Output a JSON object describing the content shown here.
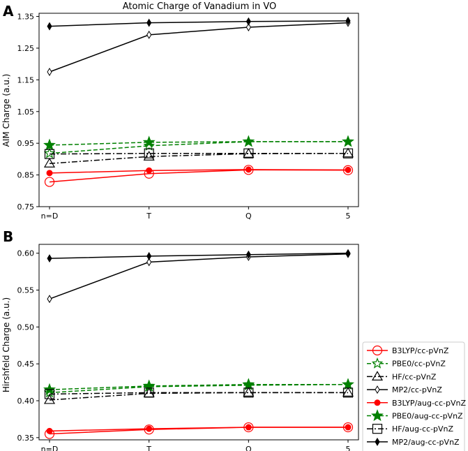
{
  "chart_data": [
    {
      "panel": "A",
      "type": "line",
      "title": "Atomic Charge of Vanadium in VO",
      "xlabel": "",
      "ylabel": "AIM Charge (a.u.)",
      "categories": [
        "n=D",
        "T",
        "Q",
        "5"
      ],
      "ylim": [
        0.75,
        1.36
      ],
      "yticks": [
        "0.75",
        "0.85",
        "0.95",
        "1.05",
        "1.15",
        "1.25",
        "1.35"
      ],
      "series": [
        {
          "name": "B3LYP/cc-pVnZ",
          "values": [
            0.828,
            0.854,
            0.866,
            0.865
          ]
        },
        {
          "name": "PBE0/cc-pVnZ",
          "values": [
            0.918,
            0.942,
            0.955,
            0.955
          ]
        },
        {
          "name": "HF/cc-pVnZ",
          "values": [
            0.886,
            0.908,
            0.917,
            0.918
          ]
        },
        {
          "name": "MP2/cc-pVnZ",
          "values": [
            1.175,
            1.292,
            1.316,
            1.33
          ]
        },
        {
          "name": "B3LYP/aug-cc-pVnZ",
          "values": [
            0.856,
            0.864,
            0.867,
            0.866
          ]
        },
        {
          "name": "PBE0/aug-cc-pVnZ",
          "values": [
            0.944,
            0.953,
            0.955,
            0.955
          ]
        },
        {
          "name": "HF/aug-cc-pVnZ",
          "values": [
            0.916,
            0.918,
            0.918,
            0.918
          ]
        },
        {
          "name": "MP2/aug-cc-pVnZ",
          "values": [
            1.319,
            1.33,
            1.334,
            1.336
          ]
        }
      ]
    },
    {
      "panel": "B",
      "type": "line",
      "title": "",
      "xlabel": "",
      "ylabel": "Hirshfeld Charge (a.u.)",
      "categories": [
        "n=D",
        "T",
        "Q",
        "5"
      ],
      "ylim": [
        0.347,
        0.612
      ],
      "yticks": [
        "0.35",
        "0.40",
        "0.45",
        "0.50",
        "0.55",
        "0.60"
      ],
      "series": [
        {
          "name": "B3LYP/cc-pVnZ",
          "values": [
            0.355,
            0.361,
            0.364,
            0.364
          ]
        },
        {
          "name": "PBE0/cc-pVnZ",
          "values": [
            0.411,
            0.419,
            0.421,
            0.422
          ]
        },
        {
          "name": "HF/cc-pVnZ",
          "values": [
            0.401,
            0.41,
            0.411,
            0.411
          ]
        },
        {
          "name": "MP2/cc-pVnZ",
          "values": [
            0.538,
            0.588,
            0.595,
            0.599
          ]
        },
        {
          "name": "B3LYP/aug-cc-pVnZ",
          "values": [
            0.359,
            0.362,
            0.364,
            0.364
          ]
        },
        {
          "name": "PBE0/aug-cc-pVnZ",
          "values": [
            0.415,
            0.42,
            0.422,
            0.422
          ]
        },
        {
          "name": "HF/aug-cc-pVnZ",
          "values": [
            0.409,
            0.411,
            0.411,
            0.411
          ]
        },
        {
          "name": "MP2/aug-cc-pVnZ",
          "values": [
            0.593,
            0.596,
            0.598,
            0.6
          ]
        }
      ]
    }
  ],
  "styles": {
    "B3LYP/cc-pVnZ": {
      "color": "#ff0000",
      "dash": "",
      "marker": "circle-open"
    },
    "PBE0/cc-pVnZ": {
      "color": "#008000",
      "dash": "6,3",
      "marker": "star-open"
    },
    "HF/cc-pVnZ": {
      "color": "#000000",
      "dash": "8,3,2,3",
      "marker": "triangle-open"
    },
    "MP2/cc-pVnZ": {
      "color": "#000000",
      "dash": "",
      "marker": "diamond-open"
    },
    "B3LYP/aug-cc-pVnZ": {
      "color": "#ff0000",
      "dash": "",
      "marker": "circle-filled"
    },
    "PBE0/aug-cc-pVnZ": {
      "color": "#008000",
      "dash": "6,3",
      "marker": "star-filled"
    },
    "HF/aug-cc-pVnZ": {
      "color": "#000000",
      "dash": "8,3,2,3",
      "marker": "square-open"
    },
    "MP2/aug-cc-pVnZ": {
      "color": "#000000",
      "dash": "",
      "marker": "diamond-filled"
    }
  }
}
